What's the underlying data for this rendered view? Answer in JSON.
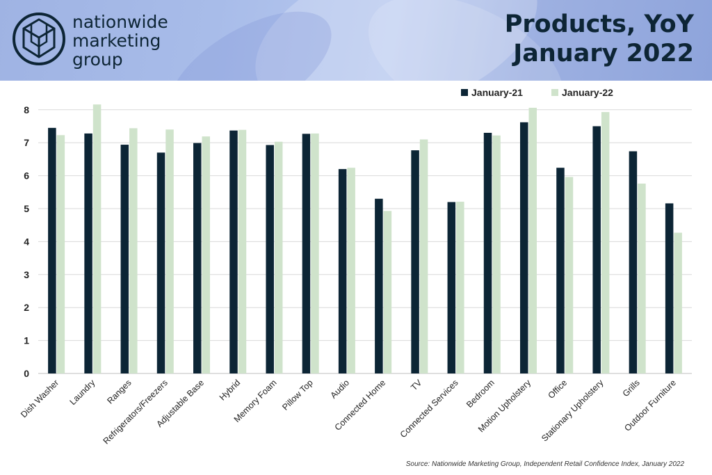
{
  "header": {
    "brand_line1": "nationwide",
    "brand_line2": "marketing",
    "brand_line3": "group",
    "title_line1": "Products, YoY",
    "title_line2": "January 2022"
  },
  "source": "Source: Nationwide Marketing Group, Independent Retail Confidence Index, January 2022",
  "colors": {
    "series1": "#0c2535",
    "series2": "#cfe3cb",
    "title": "#0d2535",
    "banner": "#a8bce9"
  },
  "icons": {
    "logo": "hexagon-cube-logo"
  },
  "chart_data": {
    "type": "bar",
    "categories": [
      "Dish Washer",
      "Laundry",
      "Ranges",
      "Refrigerators/Freezers",
      "Adjustable Base",
      "Hybrid",
      "Memory Foam",
      "Pillow Top",
      "Audio",
      "Connected Home",
      "TV",
      "Connected Services",
      "Bedroom",
      "Motion Upholstery",
      "Office",
      "Stationary Upholstery",
      "Grills",
      "Outdoor Furniture"
    ],
    "series": [
      {
        "name": "January-21",
        "values": [
          7.45,
          7.28,
          6.94,
          6.7,
          6.99,
          7.37,
          6.93,
          7.27,
          6.2,
          5.3,
          6.77,
          5.2,
          7.3,
          7.62,
          6.24,
          7.5,
          6.74,
          5.16
        ]
      },
      {
        "name": "January-22",
        "values": [
          7.23,
          8.16,
          7.44,
          7.4,
          7.19,
          7.39,
          7.03,
          7.28,
          6.24,
          4.93,
          7.1,
          5.21,
          7.22,
          8.06,
          5.96,
          7.93,
          5.76,
          4.27
        ]
      }
    ],
    "yticks": [
      "0",
      "1",
      "2",
      "3",
      "4",
      "5",
      "6",
      "7",
      "8"
    ],
    "ylim": [
      0,
      8.4
    ],
    "grid": true,
    "legend": "top-right"
  }
}
